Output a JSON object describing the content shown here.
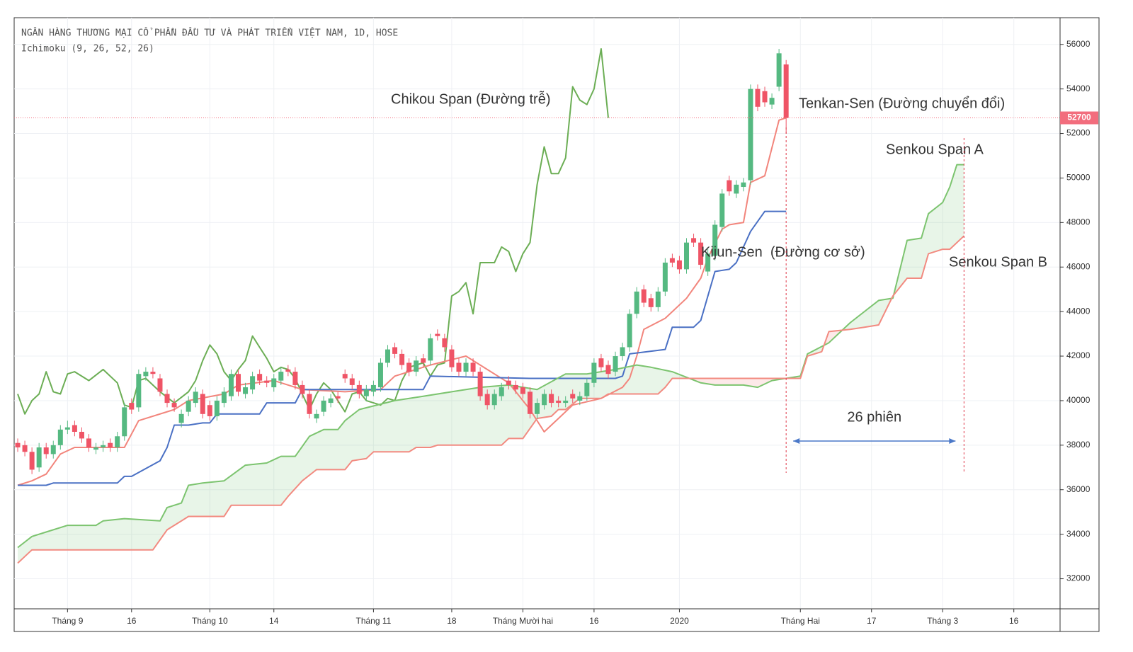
{
  "chart_data": {
    "type": "candlestick",
    "title": "NGÂN HÀNG THƯƠNG MẠI CỔ PHẦN ĐẦU TƯ VÀ PHÁT TRIỂN VIỆT NAM, 1D, HOSE",
    "subtitle": "Ichimoku (9, 26, 52, 26)",
    "xlim": [
      -0.5,
      146.5
    ],
    "xticks": [
      {
        "value": 7,
        "label": "Tháng 9"
      },
      {
        "value": 16,
        "label": "16"
      },
      {
        "value": 27,
        "label": "Tháng 10"
      },
      {
        "value": 36,
        "label": "14"
      },
      {
        "value": 50,
        "label": "Tháng 11"
      },
      {
        "value": 61,
        "label": "18"
      },
      {
        "value": 71,
        "label": "Tháng Mười hai"
      },
      {
        "value": 81,
        "label": "16"
      },
      {
        "value": 93,
        "label": "2020"
      },
      {
        "value": 110,
        "label": "Tháng Hai"
      },
      {
        "value": 120,
        "label": "17"
      },
      {
        "value": 130,
        "label": "Tháng 3"
      },
      {
        "value": 140,
        "label": "16"
      }
    ],
    "ylim": [
      30650,
      57200
    ],
    "yticks": [
      32000,
      34000,
      36000,
      38000,
      40000,
      42000,
      44000,
      46000,
      48000,
      50000,
      52000,
      54000,
      56000
    ],
    "grid": true,
    "last_price": 52700,
    "last_price_color": "#f26d7d",
    "span_label": "26 phiên",
    "candles": {
      "up_color": "#55b981",
      "down_color": "#ef5466",
      "open": [
        38100,
        38000,
        37700,
        37000,
        37900,
        37600,
        38000,
        38700,
        38900,
        38600,
        38300,
        37800,
        37900,
        38100,
        37900,
        38400,
        39900,
        39700,
        41100,
        41300,
        41000,
        40300,
        39900,
        39000,
        39500,
        39900,
        40300,
        39800,
        39300,
        39900,
        40200,
        41200,
        40300,
        40500,
        41200,
        40900,
        40600,
        40900,
        41400,
        41300,
        40700,
        40300,
        39200,
        39500,
        39900,
        40200,
        41200,
        41000,
        40700,
        40200,
        40400,
        40600,
        41700,
        42400,
        42100,
        41700,
        41300,
        41900,
        41800,
        43000,
        42800,
        42300,
        41700,
        41300,
        41700,
        41300,
        40300,
        39800,
        40200,
        40900,
        40700,
        40600,
        40400,
        39400,
        39800,
        40300,
        40000,
        39900,
        40300,
        40000,
        40200,
        40800,
        41900,
        41600,
        41300,
        42000,
        42400,
        43900,
        45000,
        44600,
        44200,
        44900,
        46400,
        46300,
        45900,
        47300,
        47100,
        45800,
        46500,
        47800,
        49900,
        49300,
        49600,
        49900,
        54000,
        53900,
        53300,
        54100,
        55100
      ],
      "high": [
        38300,
        38200,
        37900,
        38100,
        38100,
        38200,
        38900,
        39100,
        39100,
        38800,
        38500,
        38100,
        38200,
        38300,
        38600,
        39900,
        40100,
        41400,
        41500,
        41500,
        41200,
        40500,
        40100,
        39600,
        40200,
        40600,
        40500,
        40000,
        40200,
        40600,
        41400,
        41400,
        40800,
        41300,
        41400,
        41100,
        41200,
        41500,
        41600,
        41500,
        40900,
        40500,
        39600,
        40200,
        40300,
        40400,
        41400,
        41200,
        40900,
        40700,
        40900,
        41900,
        42500,
        42600,
        42300,
        41900,
        42000,
        42100,
        43000,
        43200,
        43000,
        42500,
        41900,
        41900,
        41900,
        41500,
        40500,
        40500,
        40800,
        41100,
        40900,
        40800,
        40600,
        40100,
        40500,
        40500,
        40200,
        40200,
        40500,
        40400,
        41000,
        41900,
        42100,
        41800,
        42200,
        42600,
        44100,
        45100,
        45200,
        44800,
        45100,
        46400,
        46600,
        46500,
        47300,
        47500,
        47300,
        46800,
        48100,
        49500,
        50100,
        49900,
        50000,
        54200,
        54200,
        54100,
        53800,
        55800,
        55300
      ],
      "low": [
        37700,
        37500,
        36700,
        36800,
        37400,
        37400,
        37800,
        38500,
        38400,
        38100,
        37700,
        37600,
        37700,
        37700,
        37700,
        38200,
        39400,
        39500,
        40900,
        41000,
        40200,
        39700,
        39500,
        38800,
        39300,
        39700,
        39200,
        39100,
        39100,
        39700,
        40000,
        40200,
        40100,
        40300,
        40700,
        40600,
        40400,
        40700,
        41100,
        40500,
        40100,
        39200,
        39000,
        39300,
        39700,
        39900,
        40800,
        40500,
        40100,
        40000,
        40200,
        40400,
        41500,
        41900,
        41400,
        41100,
        41100,
        41500,
        41600,
        42700,
        42200,
        41300,
        41100,
        41100,
        41100,
        40000,
        39600,
        39600,
        40000,
        40500,
        40300,
        40100,
        39200,
        39200,
        39600,
        39700,
        39700,
        39700,
        39900,
        39800,
        40000,
        40600,
        41300,
        41000,
        41100,
        41800,
        42200,
        43700,
        44200,
        44000,
        44000,
        44700,
        46000,
        45700,
        45700,
        46900,
        45900,
        45600,
        46300,
        47600,
        49200,
        49100,
        49400,
        49700,
        53000,
        53200,
        53100,
        53900,
        52000
      ],
      "close": [
        37900,
        37700,
        36900,
        37900,
        37600,
        38000,
        38700,
        38800,
        38600,
        38300,
        37900,
        37900,
        38000,
        37900,
        38400,
        39700,
        39600,
        41200,
        41300,
        41200,
        40400,
        39900,
        39700,
        39400,
        40000,
        40400,
        39400,
        39300,
        40000,
        40400,
        41200,
        40400,
        40600,
        41100,
        40900,
        40800,
        41000,
        41300,
        41300,
        40700,
        40300,
        39400,
        39400,
        40000,
        40100,
        40100,
        41000,
        40700,
        40300,
        40500,
        40700,
        41700,
        42300,
        42100,
        41600,
        41300,
        41800,
        41700,
        42800,
        42900,
        42400,
        41500,
        41300,
        41700,
        41300,
        40200,
        39800,
        40300,
        40600,
        40700,
        40500,
        40300,
        39400,
        39900,
        40300,
        39900,
        39900,
        40000,
        40100,
        40200,
        40800,
        41700,
        41500,
        41200,
        42000,
        42400,
        43900,
        44900,
        44400,
        44200,
        44900,
        46200,
        46200,
        45900,
        47100,
        47100,
        46100,
        46600,
        47900,
        49300,
        49400,
        49700,
        49800,
        54000,
        53200,
        53400,
        53600,
        55600,
        52700
      ]
    },
    "series": [
      {
        "name": "Chikou Span (Đường trễ)",
        "color": "#6cae55",
        "x": [
          0,
          1,
          2,
          3,
          4,
          5,
          6,
          7,
          8,
          10,
          12,
          14,
          15,
          16,
          17,
          18,
          20,
          22,
          24,
          25,
          26,
          27,
          28,
          29,
          30,
          31,
          32,
          33,
          34,
          35,
          36,
          37,
          38,
          39,
          40,
          41,
          42,
          43,
          44,
          46,
          47,
          48,
          49,
          50,
          51,
          52,
          53,
          54,
          55,
          57,
          58,
          59,
          60,
          61,
          62,
          63,
          64,
          65,
          66,
          67,
          68,
          69,
          70,
          71,
          72,
          73,
          74,
          75,
          76,
          77,
          78,
          79,
          80,
          81,
          82,
          83
        ],
        "values": [
          40300,
          39400,
          40000,
          40300,
          41300,
          40400,
          40300,
          41200,
          41300,
          40900,
          41400,
          40800,
          39800,
          39700,
          40900,
          41000,
          40400,
          39900,
          40400,
          40900,
          41800,
          42500,
          42100,
          41300,
          40900,
          41400,
          41800,
          42900,
          42400,
          41900,
          41300,
          41500,
          41400,
          41000,
          40300,
          39600,
          40300,
          40800,
          40500,
          39500,
          40300,
          40400,
          40000,
          39900,
          39800,
          40100,
          40000,
          40900,
          41500,
          41700,
          41100,
          41600,
          41700,
          44700,
          44900,
          45300,
          43900,
          46200,
          46200,
          46200,
          46900,
          46700,
          45800,
          46600,
          47100,
          49700,
          51400,
          50200,
          50200,
          50900,
          54100,
          53500,
          53300,
          54000,
          55800,
          52700
        ]
      },
      {
        "name": "Tenkan-Sen (Đường chuyển đổi)",
        "color": "#f2857c",
        "x": [
          0,
          2,
          4,
          6,
          8,
          15,
          17,
          22,
          24,
          29,
          31,
          36,
          40,
          46,
          51,
          53,
          58,
          63,
          65,
          69,
          72,
          74,
          76,
          78,
          82,
          85,
          86,
          87,
          88,
          91,
          94,
          96,
          97,
          99,
          100,
          102,
          103,
          105,
          107,
          108
        ],
        "values": [
          36200,
          36400,
          36700,
          37600,
          37900,
          37900,
          39100,
          39600,
          40000,
          40300,
          40700,
          40900,
          40500,
          40400,
          40500,
          41100,
          41600,
          42000,
          41600,
          40800,
          39600,
          38600,
          39200,
          39800,
          40100,
          40600,
          41000,
          42000,
          43200,
          43700,
          44600,
          45500,
          46400,
          47700,
          47900,
          48000,
          49800,
          50100,
          52600,
          52700
        ]
      },
      {
        "name": "Kijun-Sen  (Đường cơ sở)",
        "color": "#4a70c4",
        "x": [
          0,
          4,
          5,
          14,
          15,
          16,
          20,
          21,
          22,
          24,
          26,
          27,
          28,
          34,
          35,
          39,
          40,
          57,
          58,
          72,
          84,
          85,
          86,
          91,
          92,
          95,
          96,
          98,
          100,
          101,
          103,
          105,
          108
        ],
        "values": [
          36200,
          36200,
          36300,
          36300,
          36600,
          36600,
          37300,
          37900,
          38900,
          38900,
          39000,
          39000,
          39400,
          39400,
          39900,
          39900,
          40500,
          40500,
          41100,
          41000,
          41000,
          41100,
          42100,
          42300,
          43300,
          43300,
          43600,
          45800,
          45900,
          46200,
          47600,
          48500,
          48500
        ]
      },
      {
        "name": "Senkou Span A",
        "color": "#7cc46f",
        "x": [
          0,
          2,
          4,
          7,
          11,
          12,
          15,
          20,
          21,
          23,
          24,
          26,
          29,
          32,
          35,
          37,
          39,
          41,
          43,
          45,
          46,
          48,
          53,
          57,
          61,
          65,
          69,
          73,
          77,
          80,
          84,
          87,
          89,
          92,
          96,
          98,
          102,
          104,
          106,
          110,
          111,
          114,
          117,
          119,
          121,
          123,
          125,
          127,
          128,
          130,
          131,
          132,
          133
        ],
        "values": [
          33400,
          33900,
          34100,
          34400,
          34400,
          34600,
          34700,
          34600,
          35200,
          35400,
          36200,
          36300,
          36400,
          37100,
          37200,
          37500,
          37500,
          38400,
          38700,
          38700,
          39100,
          39600,
          40000,
          40200,
          40400,
          40600,
          40700,
          40500,
          41200,
          41200,
          41400,
          41600,
          41500,
          41300,
          40800,
          40700,
          40700,
          40600,
          40900,
          41100,
          42100,
          42600,
          43500,
          44000,
          44500,
          44600,
          47200,
          47300,
          48400,
          48900,
          49600,
          50600,
          50600
        ]
      },
      {
        "name": "Senkou Span B",
        "color": "#f28a80",
        "x": [
          0,
          2,
          19,
          21,
          24,
          29,
          30,
          37,
          38,
          40,
          42,
          46,
          47,
          49,
          50,
          55,
          56,
          58,
          59,
          68,
          69,
          71,
          73,
          75,
          76,
          77,
          79,
          82,
          83,
          90,
          91,
          92,
          110,
          111,
          113,
          114,
          117,
          119,
          121,
          123,
          125,
          127,
          128,
          130,
          131,
          133
        ],
        "values": [
          32700,
          33300,
          33300,
          34200,
          34800,
          34800,
          35300,
          35300,
          35700,
          36400,
          36900,
          36900,
          37300,
          37400,
          37700,
          37700,
          37900,
          37900,
          38000,
          38000,
          38300,
          38300,
          39200,
          39300,
          39600,
          39600,
          40100,
          40100,
          40300,
          40300,
          40600,
          41000,
          41000,
          42000,
          42200,
          43100,
          43200,
          43300,
          43400,
          44700,
          45500,
          45500,
          46600,
          46800,
          46800,
          47400
        ]
      }
    ],
    "cloud_colors": [
      "rgba(110,190,110,0.16)",
      "rgba(240,120,120,0.16)"
    ]
  }
}
